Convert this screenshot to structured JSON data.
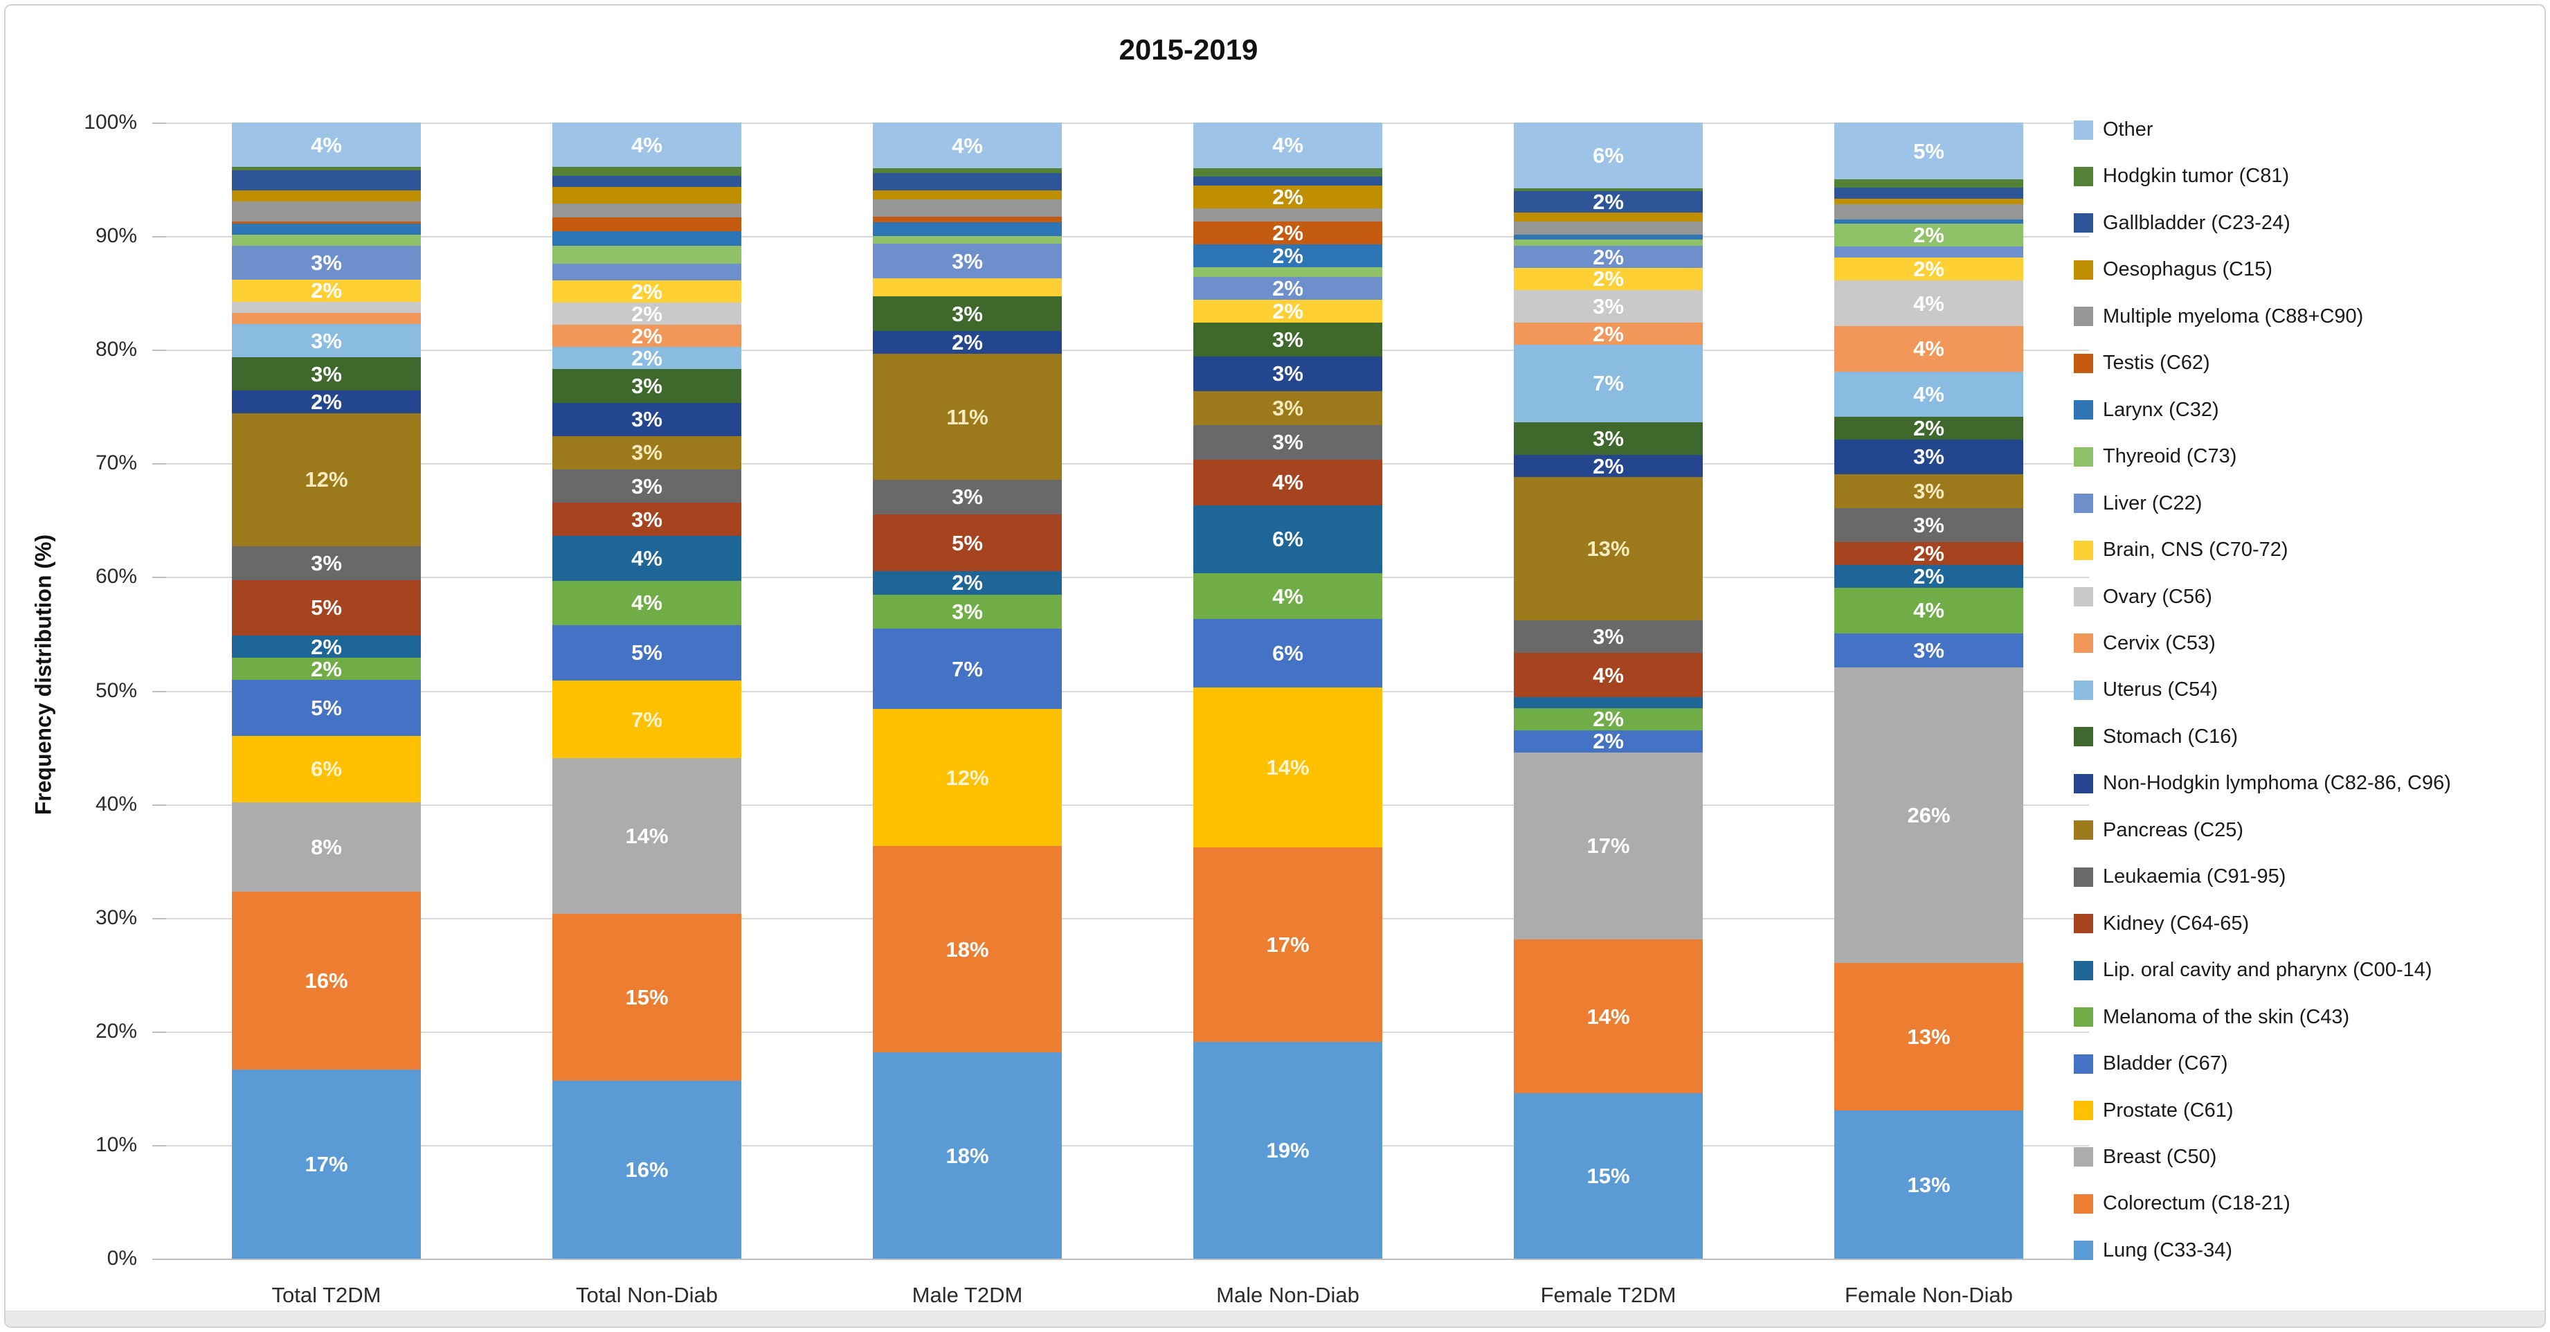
{
  "title": "2015-2019",
  "y_axis": {
    "title": "Frequency distribution (%)",
    "ticks": [
      "0%",
      "10%",
      "20%",
      "30%",
      "40%",
      "50%",
      "60%",
      "70%",
      "80%",
      "90%",
      "100%"
    ]
  },
  "chart_data": {
    "type": "bar",
    "subtype": "stacked-100-percent",
    "title": "2015-2019",
    "xlabel": "",
    "ylabel": "Frequency distribution (%)",
    "ylim": [
      0,
      100
    ],
    "grid": true,
    "legend_position": "right",
    "categories": [
      "Total T2DM",
      "Total Non-Diab",
      "Male T2DM",
      "Male Non-Diab",
      "Female T2DM",
      "Female Non-Diab"
    ],
    "stacking_note": "series listed in legend order (top to bottom); bars stack bottom-up in reverse order, i.e. Lung at bottom, Other at top",
    "series": [
      {
        "name": "Other",
        "color": "#9DC3E6",
        "values": [
          4,
          4,
          4,
          4,
          6,
          5
        ],
        "labels": [
          "4%",
          "4%",
          "4%",
          "4%",
          "6%",
          "5%"
        ]
      },
      {
        "name": "Hodgkin tumor (C81)",
        "color": "#538135",
        "values": [
          0.3,
          0.8,
          0.4,
          0.7,
          0.2,
          0.7
        ],
        "labels": [
          "",
          "",
          "",
          "",
          "",
          ""
        ]
      },
      {
        "name": "Gallbladder (C23-24)",
        "color": "#2E5597",
        "values": [
          1.8,
          1,
          1.5,
          0.8,
          2,
          1
        ],
        "labels": [
          "",
          "",
          "",
          "",
          "2%",
          ""
        ]
      },
      {
        "name": "Oesophagus (C15)",
        "color": "#BF8F00",
        "values": [
          1,
          1.5,
          0.8,
          2,
          0.8,
          0.5
        ],
        "labels": [
          "",
          "",
          "",
          "2%",
          "",
          ""
        ]
      },
      {
        "name": "Multiple myeloma (C88+C90)",
        "color": "#969696",
        "values": [
          1.8,
          1.2,
          1.5,
          1.2,
          1.2,
          1.3
        ],
        "labels": [
          "",
          "",
          "",
          "",
          "",
          ""
        ]
      },
      {
        "name": "Testis (C62)",
        "color": "#C55A11",
        "values": [
          0.2,
          1.3,
          0.5,
          2,
          0,
          0
        ],
        "labels": [
          "",
          "",
          "",
          "2%",
          "",
          ""
        ]
      },
      {
        "name": "Larynx (C32)",
        "color": "#2E75B6",
        "values": [
          1,
          1.3,
          1.2,
          2,
          0.4,
          0.4
        ],
        "labels": [
          "",
          "",
          "",
          "2%",
          "",
          ""
        ]
      },
      {
        "name": "Thyreoid (C73)",
        "color": "#8FC168",
        "values": [
          1,
          1.6,
          0.7,
          0.8,
          0.6,
          2
        ],
        "labels": [
          "",
          "",
          "",
          "",
          "",
          "2%"
        ]
      },
      {
        "name": "Liver (C22)",
        "color": "#6D8FCB",
        "values": [
          3,
          1.5,
          3,
          2,
          2,
          1
        ],
        "labels": [
          "3%",
          "",
          "3%",
          "2%",
          "2%",
          ""
        ]
      },
      {
        "name": "Brain, CNS (C70-72)",
        "color": "#FFD034",
        "values": [
          2,
          2,
          1.6,
          2,
          2,
          2
        ],
        "labels": [
          "2%",
          "2%",
          "",
          "2%",
          "2%",
          "2%"
        ]
      },
      {
        "name": "Ovary (C56)",
        "color": "#C9C9C9",
        "values": [
          1,
          2,
          0,
          0,
          3,
          4
        ],
        "labels": [
          "",
          "2%",
          "",
          "",
          "3%",
          "4%"
        ]
      },
      {
        "name": "Cervix (C53)",
        "color": "#F1975A",
        "values": [
          1,
          2,
          0,
          0,
          2,
          4
        ],
        "labels": [
          "",
          "2%",
          "",
          "",
          "2%",
          "4%"
        ]
      },
      {
        "name": "Uterus (C54)",
        "color": "#89BCE0",
        "values": [
          3,
          2,
          0,
          0,
          7,
          4
        ],
        "labels": [
          "3%",
          "2%",
          "",
          "",
          "7%",
          "4%"
        ]
      },
      {
        "name": "Stomach (C16)",
        "color": "#3E682C",
        "values": [
          3,
          3,
          3,
          3,
          3,
          2
        ],
        "labels": [
          "3%",
          "3%",
          "3%",
          "3%",
          "3%",
          "2%"
        ]
      },
      {
        "name": "Non-Hodgkin lymphoma (C82-86, C96)",
        "color": "#24468F",
        "values": [
          2,
          3,
          2,
          3,
          2,
          3
        ],
        "labels": [
          "2%",
          "3%",
          "2%",
          "3%",
          "2%",
          "3%"
        ]
      },
      {
        "name": "Pancreas (C25)",
        "color": "#9C7A1C",
        "values": [
          12,
          3,
          11,
          3,
          13,
          3
        ],
        "labels": [
          "12%",
          "3%",
          "11%",
          "3%",
          "13%",
          "3%"
        ],
        "label_color": "#F5EBBE"
      },
      {
        "name": "Leukaemia (C91-95)",
        "color": "#696969",
        "values": [
          3,
          3,
          3,
          3,
          3,
          3
        ],
        "labels": [
          "3%",
          "3%",
          "3%",
          "3%",
          "3%",
          "3%"
        ]
      },
      {
        "name": "Kidney (C64-65)",
        "color": "#A5441F",
        "values": [
          5,
          3,
          5,
          4,
          4,
          2
        ],
        "labels": [
          "5%",
          "3%",
          "5%",
          "4%",
          "4%",
          "2%"
        ]
      },
      {
        "name": "Lip. oral cavity and pharynx (C00-14)",
        "color": "#1E6598",
        "values": [
          2,
          4,
          2,
          6,
          1,
          2
        ],
        "labels": [
          "2%",
          "4%",
          "2%",
          "6%",
          "",
          "2%"
        ]
      },
      {
        "name": "Melanoma of the skin (C43)",
        "color": "#70AD47",
        "values": [
          2,
          4,
          3,
          4,
          2,
          4
        ],
        "labels": [
          "2%",
          "4%",
          "3%",
          "4%",
          "2%",
          "4%"
        ]
      },
      {
        "name": "Bladder (C67)",
        "color": "#4472C4",
        "values": [
          5,
          5,
          7,
          6,
          2,
          3
        ],
        "labels": [
          "5%",
          "5%",
          "7%",
          "6%",
          "2%",
          "3%"
        ]
      },
      {
        "name": "Prostate (C61)",
        "color": "#FFC000",
        "values": [
          6,
          7,
          12,
          14,
          0,
          0
        ],
        "labels": [
          "6%",
          "7%",
          "12%",
          "14%",
          "",
          ""
        ],
        "label_color": "#FDF4D4"
      },
      {
        "name": "Breast (C50)",
        "color": "#ACACAC",
        "values": [
          8,
          14,
          0,
          0,
          17,
          26
        ],
        "labels": [
          "8%",
          "14%",
          "",
          "",
          "17%",
          "26%"
        ]
      },
      {
        "name": "Colorectum (C18-21)",
        "color": "#ED7D31",
        "values": [
          16,
          15,
          18,
          17,
          14,
          13
        ],
        "labels": [
          "16%",
          "15%",
          "18%",
          "17%",
          "14%",
          "13%"
        ]
      },
      {
        "name": "Lung (C33-34)",
        "color": "#5B9BD5",
        "values": [
          17,
          16,
          18,
          19,
          15,
          13
        ],
        "labels": [
          "17%",
          "16%",
          "18%",
          "19%",
          "15%",
          "13%"
        ]
      }
    ]
  }
}
